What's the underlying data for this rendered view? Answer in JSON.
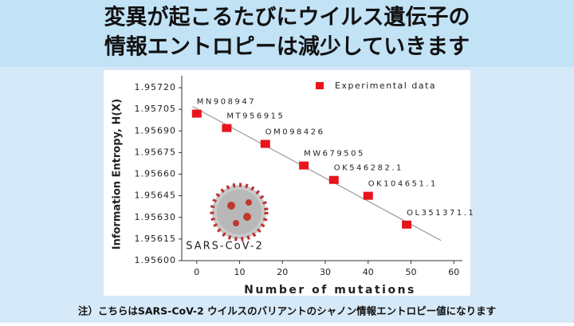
{
  "header": {
    "title_lines": [
      "変異が起こるたびにウイルス遺伝子の",
      "情報エントロピーは減少していきます"
    ]
  },
  "chart_data": {
    "type": "scatter",
    "x_label": "Number of mutations",
    "y_label": "Information Entropy, H(X)",
    "series": [
      {
        "name": "Experimental data",
        "color": "#e8141c",
        "x": [
          0,
          7,
          16,
          25,
          32,
          40,
          49
        ],
        "values": [
          1.95702,
          1.95692,
          1.95681,
          1.95666,
          1.95656,
          1.95645,
          1.95625
        ]
      }
    ],
    "point_labels": [
      "MN908947",
      "MT956915",
      "OM098426",
      "MW679505",
      "OK546282.1",
      "OK104651.1",
      "OL351371.1"
    ],
    "trend_line": {
      "color": "#888888",
      "x": [
        -1,
        57
      ],
      "values": [
        1.95707,
        1.95614
      ]
    },
    "annotation": "SARS-CoV-2",
    "xlim": [
      -3.5,
      62
    ],
    "xticks": [
      0,
      10,
      20,
      30,
      40,
      50,
      60
    ],
    "ylim": [
      1.956,
      1.9572
    ],
    "yticks": [
      {
        "value": 1.956,
        "label": "1.95600"
      },
      1.95615,
      {
        "value": 1.9563,
        "label": "1.95630"
      },
      1.95645,
      {
        "value": 1.9566,
        "label": "1.95660"
      },
      1.95675,
      {
        "value": 1.9569,
        "label": "1.95690"
      },
      1.95705,
      {
        "value": 1.9572,
        "label": "1.95720"
      }
    ],
    "legend": "top-right"
  },
  "footnote": "注）こちらはSARS-CoV-2 ウイルスのバリアントのシャノン情報エントロピー値になります"
}
